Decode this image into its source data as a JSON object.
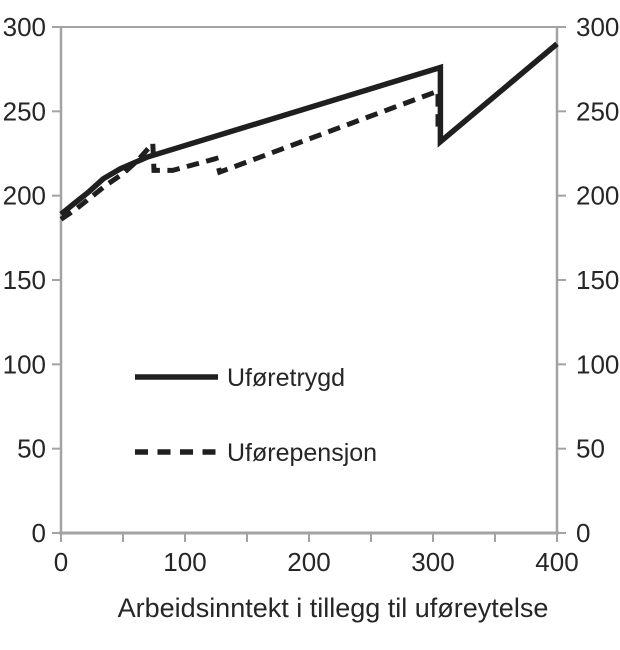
{
  "chart_data": {
    "type": "line",
    "title": "",
    "xlabel": "Arbeidsinntekt i tillegg til uføreytelse",
    "ylabel": "",
    "xlim": [
      0,
      400
    ],
    "ylim": [
      0,
      300
    ],
    "x_tick_labels": [
      "0",
      "100",
      "200",
      "300",
      "400"
    ],
    "x_tick_label_values": [
      0,
      100,
      200,
      300,
      400
    ],
    "x_minor_ticks": [
      0,
      50,
      100,
      150,
      200,
      250,
      300,
      350,
      400
    ],
    "y_ticks": [
      0,
      50,
      100,
      150,
      200,
      250,
      300
    ],
    "y_tick_labels_left": [
      "0",
      "50",
      "100",
      "150",
      "200",
      "250",
      "300"
    ],
    "y_tick_labels_right": [
      "0",
      "50",
      "100",
      "150",
      "200",
      "250",
      "300"
    ],
    "grid": "top-border-only",
    "legend_position": "inside-left-middle",
    "colors": {
      "line": "#1f1f1f",
      "axis": "#a3a3a3",
      "text": "#262626"
    },
    "series": [
      {
        "name": "Uføretrygd",
        "style": "solid",
        "points": [
          [
            0,
            189
          ],
          [
            10,
            195
          ],
          [
            22,
            202
          ],
          [
            34,
            210
          ],
          [
            48,
            216
          ],
          [
            70,
            223
          ],
          [
            306,
            276
          ],
          [
            306,
            232
          ],
          [
            400,
            290
          ]
        ]
      },
      {
        "name": "Uførepensjon",
        "style": "dashed",
        "points": [
          [
            0,
            186
          ],
          [
            12,
            192
          ],
          [
            24,
            199
          ],
          [
            36,
            206
          ],
          [
            50,
            213
          ],
          [
            62,
            221
          ],
          [
            74,
            231
          ],
          [
            75,
            215
          ],
          [
            90,
            215
          ],
          [
            125,
            222
          ],
          [
            128,
            214
          ],
          [
            304,
            262
          ],
          [
            304,
            240
          ]
        ]
      }
    ]
  }
}
